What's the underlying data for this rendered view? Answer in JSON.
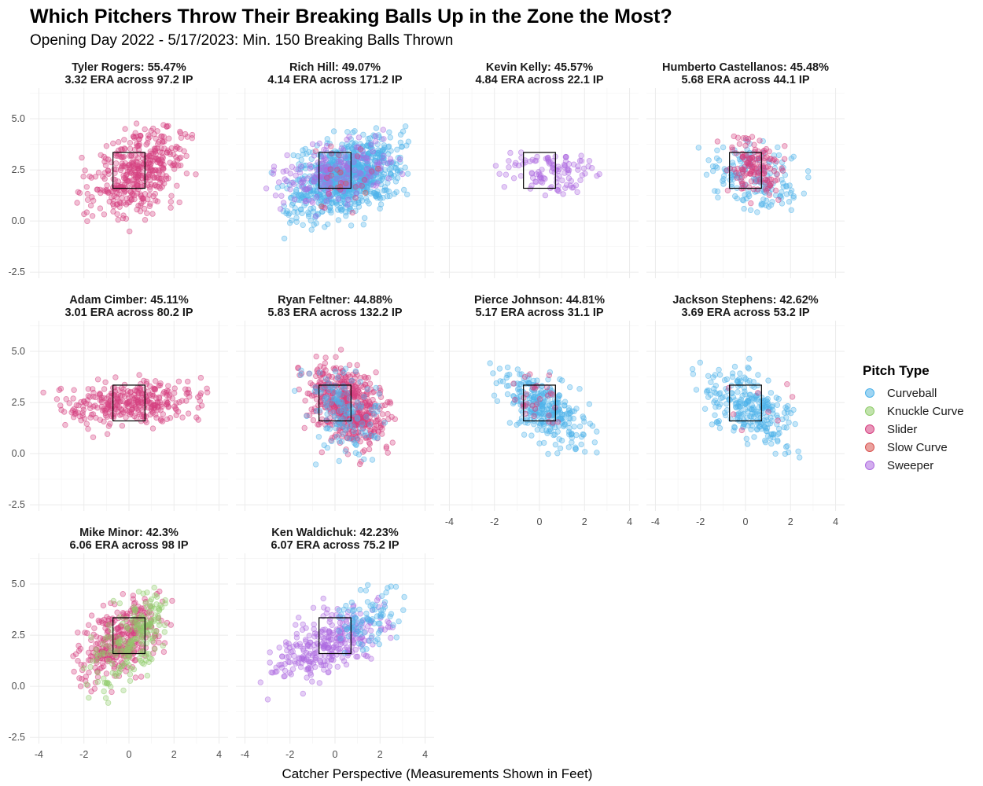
{
  "title": "Which Pitchers Throw Their Breaking Balls Up in the Zone the Most?",
  "subtitle": "Opening Day 2022 - 5/17/2023: Min. 150 Breaking Balls Thrown",
  "chart_data": {
    "type": "scatter",
    "xlabel": "Catcher Perspective (Measurements Shown in Feet)",
    "xlim": [
      -4.4,
      4.4
    ],
    "ylim": [
      -2.8,
      6.5
    ],
    "x_ticks": [
      -4,
      -2,
      0,
      2,
      4
    ],
    "y_ticks": [
      -2.5,
      0.0,
      2.5,
      5.0
    ],
    "y_tick_labels": [
      "-2.5",
      "0.0",
      "2.5",
      "5.0"
    ],
    "strike_zone": {
      "x": [
        -0.71,
        0.71
      ],
      "y": [
        1.6,
        3.35
      ]
    },
    "legend": {
      "title": "Pitch Type",
      "items": [
        {
          "name": "Curveball",
          "color": "#4fb3ea"
        },
        {
          "name": "Knuckle Curve",
          "color": "#8fcc6a"
        },
        {
          "name": "Slider",
          "color": "#d63f80"
        },
        {
          "name": "Slow Curve",
          "color": "#d9534f"
        },
        {
          "name": "Sweeper",
          "color": "#ad6ae0"
        }
      ]
    },
    "panels": [
      {
        "title": "Tyler Rogers: 55.47%",
        "subtitle": "3.32 ERA across 97.2 IP",
        "pct": 55.47,
        "era": 3.32,
        "ip": "97.2",
        "clouds": [
          {
            "type": "Slider",
            "n": 420,
            "mx": 0.4,
            "my": 2.4,
            "sx": 1.1,
            "sy": 1.05,
            "rho": 0.45,
            "bounds": [
              -2.6,
              3.2,
              -0.7,
              5.2
            ]
          }
        ]
      },
      {
        "title": "Rich Hill: 49.07%",
        "subtitle": "4.14 ERA across 171.2 IP",
        "pct": 49.07,
        "era": 4.14,
        "ip": "171.2",
        "clouds": [
          {
            "type": "Curveball",
            "n": 900,
            "mx": 0.5,
            "my": 2.2,
            "sx": 1.2,
            "sy": 0.95,
            "rho": 0.45,
            "bounds": [
              -3.2,
              3.3,
              -1.2,
              5.1
            ]
          },
          {
            "type": "Sweeper",
            "n": 170,
            "mx": 0.0,
            "my": 2.4,
            "sx": 1.5,
            "sy": 0.9,
            "rho": 0.35,
            "bounds": [
              -3.5,
              3.0,
              0.0,
              4.5
            ]
          },
          {
            "type": "Slider",
            "n": 22,
            "mx": 0.5,
            "my": 2.2,
            "sx": 1.0,
            "sy": 0.9,
            "rho": 0.3,
            "bounds": [
              -2.0,
              3.0,
              0.0,
              6.0
            ]
          },
          {
            "type": "Slow Curve",
            "n": 6,
            "mx": 0.0,
            "my": 1.6,
            "sx": 1.2,
            "sy": 0.9,
            "rho": 0.2,
            "bounds": [
              -2.0,
              2.0,
              0.0,
              3.0
            ]
          }
        ]
      },
      {
        "title": "Kevin Kelly: 45.57%",
        "subtitle": "4.84 ERA across 22.1 IP",
        "pct": 45.57,
        "era": 4.84,
        "ip": "22.1",
        "clouds": [
          {
            "type": "Sweeper",
            "n": 110,
            "mx": 0.5,
            "my": 2.4,
            "sx": 1.1,
            "sy": 0.55,
            "rho": 0.0,
            "bounds": [
              -4.0,
              3.1,
              1.2,
              3.7
            ]
          }
        ]
      },
      {
        "title": "Humberto Castellanos: 45.48%",
        "subtitle": "5.68 ERA across 44.1 IP",
        "pct": 45.48,
        "era": 5.68,
        "ip": "44.1",
        "clouds": [
          {
            "type": "Curveball",
            "n": 160,
            "mx": 0.4,
            "my": 2.1,
            "sx": 1.1,
            "sy": 0.85,
            "rho": -0.2,
            "bounds": [
              -2.2,
              3.2,
              -0.6,
              4.0
            ]
          },
          {
            "type": "Slider",
            "n": 140,
            "mx": 0.3,
            "my": 2.8,
            "sx": 0.7,
            "sy": 0.75,
            "rho": -0.3,
            "bounds": [
              -1.5,
              2.5,
              0.8,
              4.4
            ]
          }
        ]
      },
      {
        "title": "Adam Cimber: 45.11%",
        "subtitle": "3.01 ERA across 80.2 IP",
        "pct": 45.11,
        "era": 3.01,
        "ip": "80.2",
        "clouds": [
          {
            "type": "Slider",
            "n": 330,
            "mx": 0.0,
            "my": 2.5,
            "sx": 1.4,
            "sy": 0.5,
            "rho": 0.1,
            "bounds": [
              -4.2,
              3.6,
              0.6,
              4.1
            ]
          }
        ]
      },
      {
        "title": "Ryan Feltner: 44.88%",
        "subtitle": "5.83 ERA across 132.2 IP",
        "pct": 44.88,
        "era": 5.83,
        "ip": "132.2",
        "clouds": [
          {
            "type": "Slider",
            "n": 520,
            "mx": 0.6,
            "my": 2.3,
            "sx": 0.85,
            "sy": 1.0,
            "rho": -0.45,
            "bounds": [
              -2.4,
              2.7,
              -0.8,
              5.7
            ]
          },
          {
            "type": "Curveball",
            "n": 140,
            "mx": 0.4,
            "my": 2.0,
            "sx": 0.9,
            "sy": 1.1,
            "rho": -0.4,
            "bounds": [
              -2.0,
              2.4,
              -1.5,
              5.0
            ]
          }
        ]
      },
      {
        "title": "Pierce Johnson: 44.81%",
        "subtitle": "5.17 ERA across 31.1 IP",
        "pct": 44.81,
        "era": 5.17,
        "ip": "31.1",
        "clouds": [
          {
            "type": "Curveball",
            "n": 300,
            "mx": 0.1,
            "my": 2.3,
            "sx": 0.95,
            "sy": 0.95,
            "rho": -0.6,
            "bounds": [
              -2.8,
              2.6,
              -0.5,
              4.8
            ]
          },
          {
            "type": "Slider",
            "n": 30,
            "mx": 0.0,
            "my": 2.6,
            "sx": 0.6,
            "sy": 0.7,
            "rho": -0.2,
            "bounds": [
              -1.5,
              1.8,
              1.0,
              4.4
            ]
          }
        ]
      },
      {
        "title": "Jackson Stephens: 42.62%",
        "subtitle": "3.69 ERA across 53.2 IP",
        "pct": 42.62,
        "era": 3.69,
        "ip": "53.2",
        "clouds": [
          {
            "type": "Curveball",
            "n": 260,
            "mx": 0.2,
            "my": 2.3,
            "sx": 1.0,
            "sy": 0.95,
            "rho": -0.55,
            "bounds": [
              -2.7,
              2.6,
              -1.1,
              4.8
            ]
          },
          {
            "type": "Slider",
            "n": 8,
            "mx": 1.2,
            "my": 2.3,
            "sx": 1.2,
            "sy": 0.8,
            "rho": -0.3,
            "bounds": [
              -1.0,
              3.0,
              0.1,
              3.5
            ]
          }
        ]
      },
      {
        "title": "Mike Minor: 42.3%",
        "subtitle": "6.06 ERA across 98 IP",
        "pct": 42.3,
        "era": 6.06,
        "ip": "98",
        "clouds": [
          {
            "type": "Slider",
            "n": 340,
            "mx": -0.3,
            "my": 2.4,
            "sx": 1.0,
            "sy": 1.1,
            "rho": 0.5,
            "bounds": [
              -2.6,
              2.2,
              -0.3,
              4.7
            ]
          },
          {
            "type": "Knuckle Curve",
            "n": 200,
            "mx": 0.2,
            "my": 2.3,
            "sx": 1.0,
            "sy": 1.2,
            "rho": 0.6,
            "bounds": [
              -2.2,
              1.7,
              -2.1,
              5.0
            ]
          }
        ]
      },
      {
        "title": "Ken Waldichuk: 42.23%",
        "subtitle": "6.07 ERA across 75.2 IP",
        "pct": 42.23,
        "era": 6.07,
        "ip": "75.2",
        "clouds": [
          {
            "type": "Sweeper",
            "n": 300,
            "mx": -0.2,
            "my": 2.2,
            "sx": 1.2,
            "sy": 0.95,
            "rho": 0.55,
            "bounds": [
              -3.5,
              2.6,
              -1.2,
              4.4
            ]
          },
          {
            "type": "Curveball",
            "n": 90,
            "mx": 1.3,
            "my": 3.2,
            "sx": 0.8,
            "sy": 0.85,
            "rho": 0.4,
            "bounds": [
              -0.5,
              3.2,
              1.5,
              5.2
            ]
          }
        ]
      }
    ]
  }
}
